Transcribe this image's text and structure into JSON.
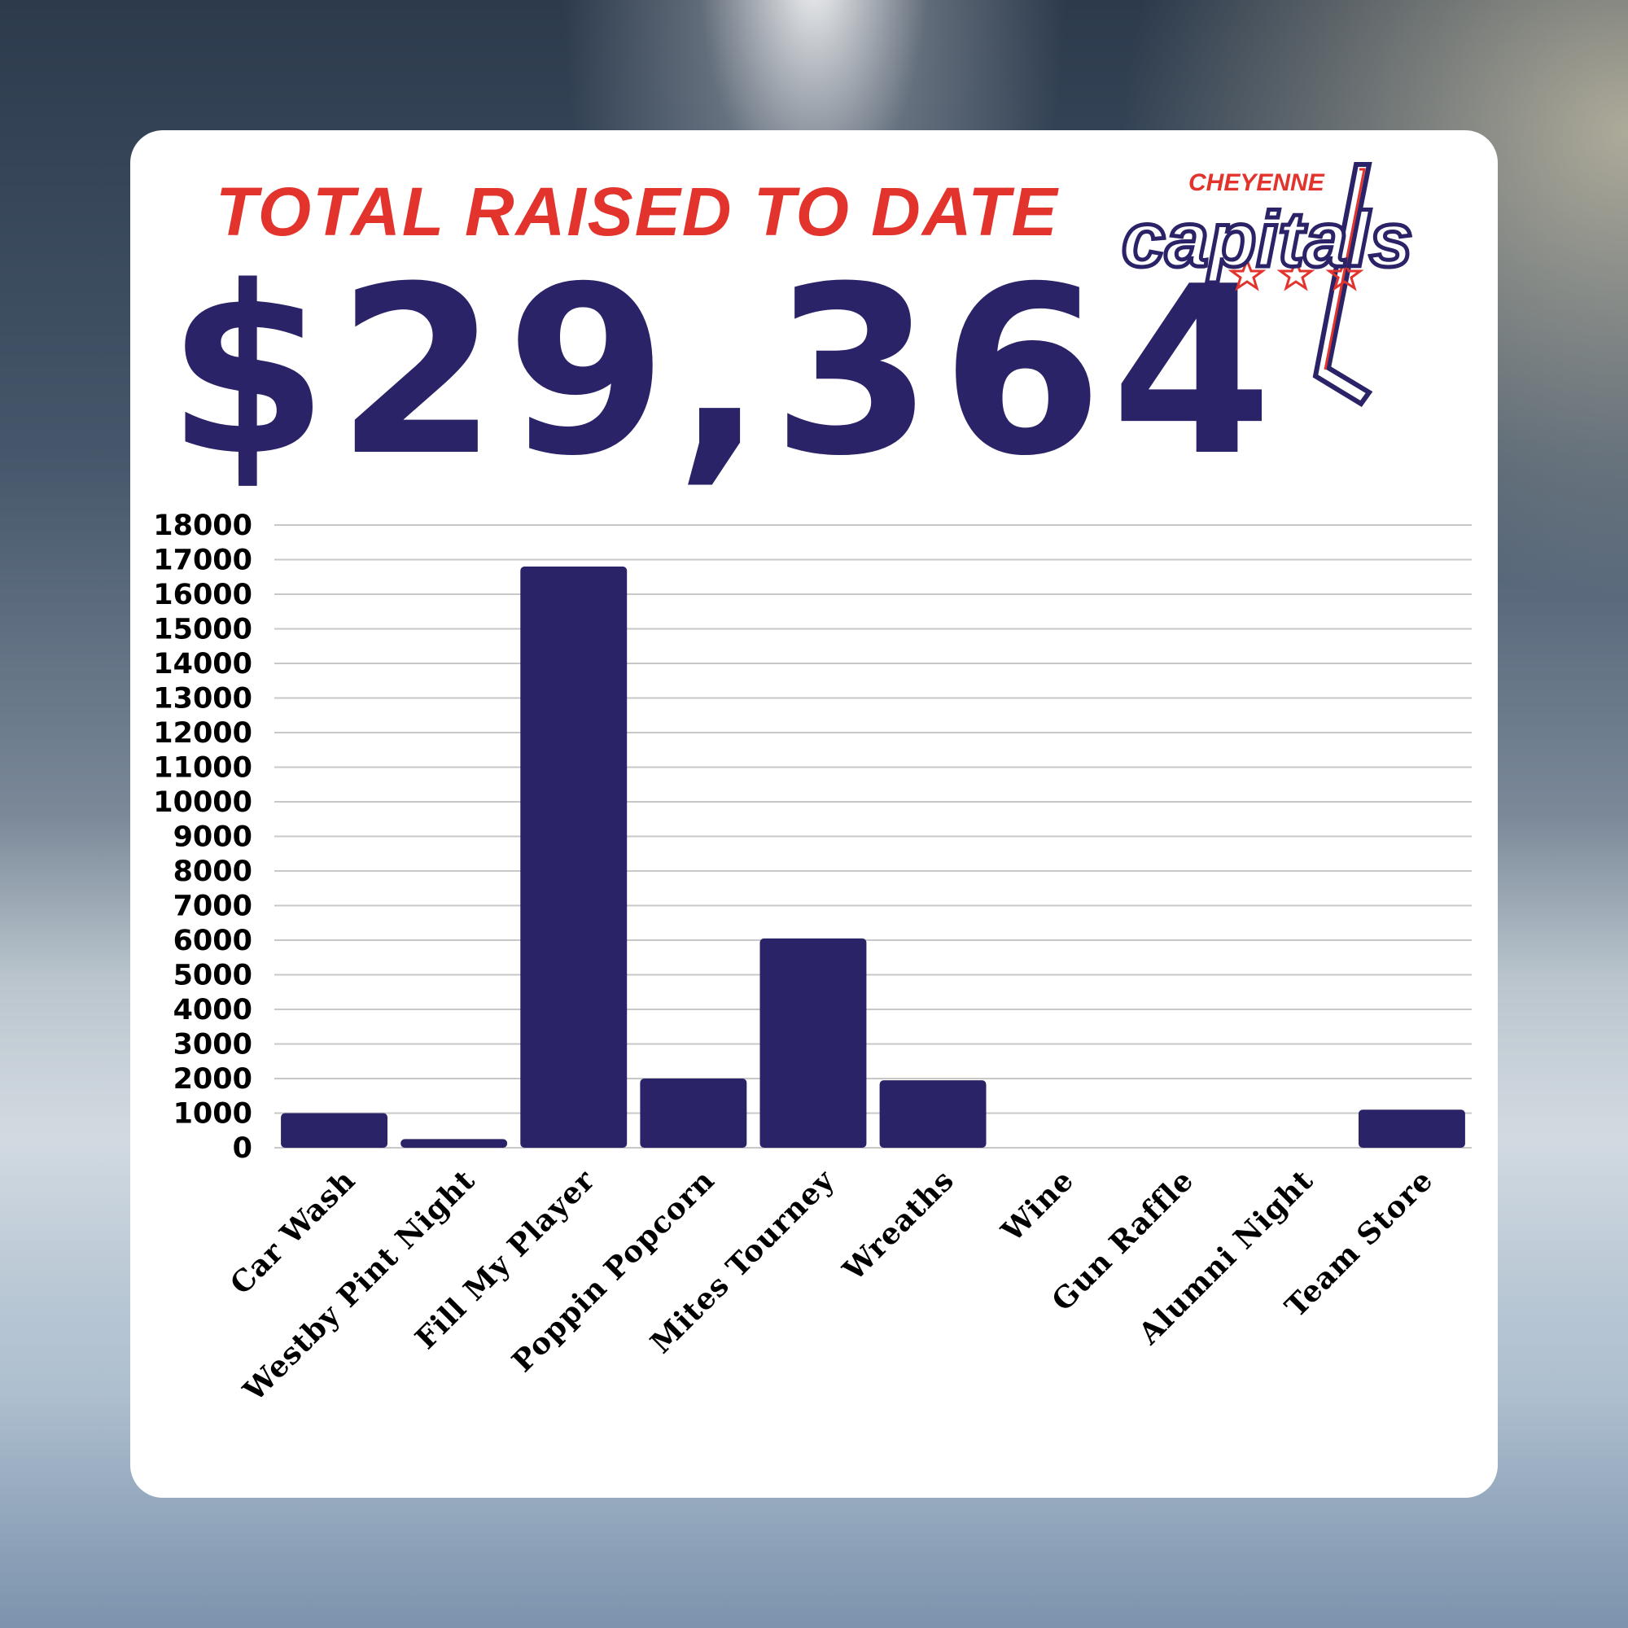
{
  "header": {
    "headline": "TOTAL RAISED TO DATE",
    "total": "$29,364"
  },
  "logo": {
    "top_text": "CHEYENNE",
    "word": "capitals",
    "colors": {
      "red": "#e2332c",
      "navy": "#2a2367"
    }
  },
  "chart_data": {
    "type": "bar",
    "categories": [
      "Car Wash",
      "Westby Pint Night",
      "Fill My Player",
      "Poppin Popcorn",
      "Mites Tourney",
      "Wreaths",
      "Wine",
      "Gun Raffle",
      "Alumni Night",
      "Team Store"
    ],
    "values": [
      1000,
      250,
      16800,
      2000,
      6050,
      1950,
      0,
      0,
      0,
      1100
    ],
    "ylim": [
      0,
      18000
    ],
    "yticks": [
      0,
      1000,
      2000,
      3000,
      4000,
      5000,
      6000,
      7000,
      8000,
      9000,
      10000,
      11000,
      12000,
      13000,
      14000,
      15000,
      16000,
      17000,
      18000
    ],
    "bar_color": "#2a2367",
    "grid": true,
    "legend": "none"
  }
}
